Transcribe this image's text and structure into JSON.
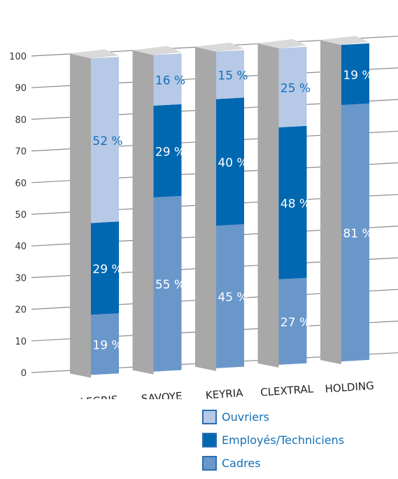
{
  "chart_data": {
    "type": "bar",
    "stacked": true,
    "three_d": true,
    "categories": [
      "LEGRIS",
      "SAVOYE",
      "KEYRIA",
      "CLEXTRAL",
      "HOLDING"
    ],
    "y_ticks": [
      "0",
      "10",
      "20",
      "30",
      "40",
      "50",
      "60",
      "70",
      "80",
      "90",
      "100"
    ],
    "ylim": [
      0,
      100
    ],
    "grid": true,
    "legend_position": "bottom",
    "series": [
      {
        "name": "Cadres",
        "color": "#6a97ca",
        "values": [
          19,
          55,
          45,
          27,
          81
        ],
        "labels": [
          "19 %",
          "55 %",
          "45 %",
          "27 %",
          "81 %"
        ],
        "label_color": "#ffffff"
      },
      {
        "name": "Employés/Techniciens",
        "color": "#0067b1",
        "values": [
          29,
          29,
          40,
          48,
          19
        ],
        "labels": [
          "29 %",
          "29 %",
          "40 %",
          "48 %",
          "19 %"
        ],
        "label_color": "#ffffff"
      },
      {
        "name": "Ouvriers",
        "color": "#b6c9e6",
        "values": [
          52,
          16,
          15,
          25,
          0
        ],
        "labels": [
          "52 %",
          "16 %",
          "15 %",
          "25 %",
          ""
        ],
        "label_color": "#1470b8"
      }
    ]
  },
  "legend": {
    "items": [
      {
        "label": "Ouvriers",
        "color": "#b6c9e6"
      },
      {
        "label": "Employés/Techniciens",
        "color": "#0067b1"
      },
      {
        "label": "Cadres",
        "color": "#6a97ca"
      }
    ]
  }
}
